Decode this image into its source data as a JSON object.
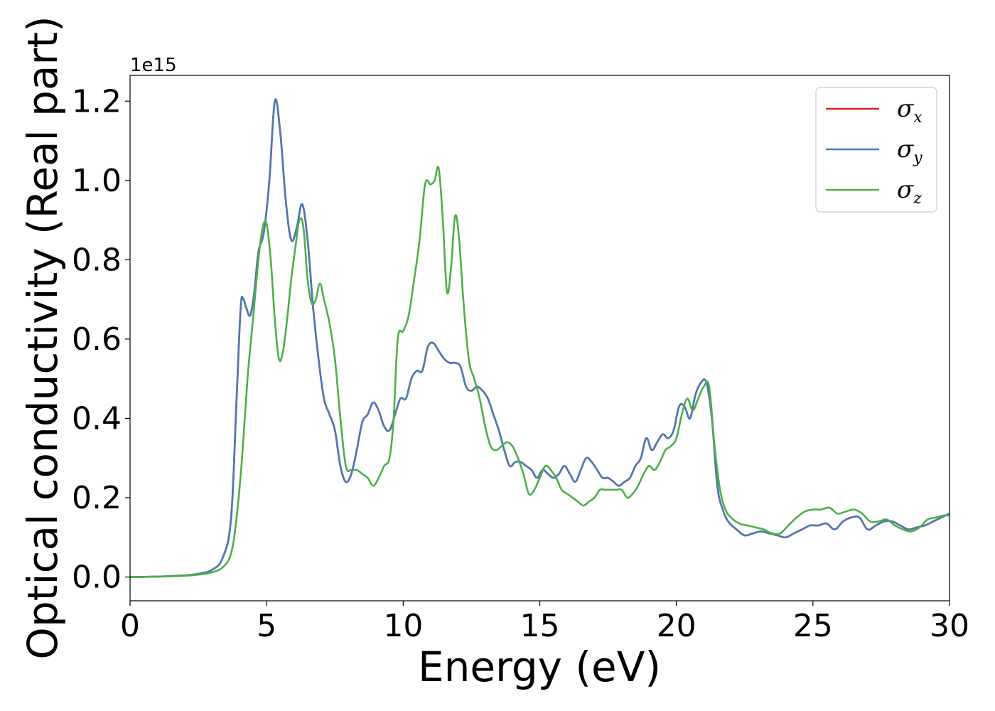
{
  "chart_data": {
    "type": "line",
    "title": "",
    "xlabel": "Energy (eV)",
    "ylabel": "Optical conductivity (Real part)",
    "y_offset_text": "1e15",
    "xlim": [
      0,
      30
    ],
    "ylim": [
      -0.06,
      1.265
    ],
    "xticks": [
      0,
      5,
      10,
      15,
      20,
      25,
      30
    ],
    "yticks": [
      0.0,
      0.2,
      0.4,
      0.6,
      0.8,
      1.0,
      1.2
    ],
    "xtick_labels": [
      "0",
      "5",
      "10",
      "15",
      "20",
      "25",
      "30"
    ],
    "ytick_labels": [
      "0.0",
      "0.2",
      "0.4",
      "0.6",
      "0.8",
      "1.0",
      "1.2"
    ],
    "grid": false,
    "legend_position": "top-right",
    "series": [
      {
        "name": "σx",
        "symbol": "σ",
        "subscript": "x",
        "color": "#e41a1c",
        "x": [
          0,
          1,
          2,
          2.5,
          3,
          3.4,
          3.7,
          3.9,
          4.05,
          4.15,
          4.25,
          4.4,
          4.55,
          4.7,
          4.9,
          5.1,
          5.3,
          5.5,
          5.7,
          5.9,
          6.1,
          6.3,
          6.5,
          6.7,
          6.9,
          7.1,
          7.3,
          7.5,
          7.7,
          7.9,
          8.1,
          8.3,
          8.5,
          8.7,
          8.9,
          9.1,
          9.3,
          9.5,
          9.7,
          9.9,
          10.1,
          10.3,
          10.5,
          10.7,
          10.9,
          11.1,
          11.3,
          11.5,
          11.7,
          11.9,
          12.1,
          12.3,
          12.5,
          12.7,
          12.9,
          13.1,
          13.3,
          13.5,
          13.7,
          13.9,
          14.1,
          14.3,
          14.5,
          14.7,
          14.9,
          15.1,
          15.3,
          15.5,
          15.7,
          15.9,
          16.1,
          16.3,
          16.5,
          16.7,
          16.9,
          17.1,
          17.3,
          17.5,
          17.7,
          17.9,
          18.1,
          18.3,
          18.5,
          18.7,
          18.9,
          19.1,
          19.3,
          19.5,
          19.7,
          19.9,
          20.1,
          20.3,
          20.5,
          20.7,
          20.9,
          21.1,
          21.3,
          21.5,
          21.7,
          21.9,
          22.2,
          22.5,
          22.8,
          23.1,
          23.4,
          23.7,
          24.0,
          24.3,
          24.6,
          24.9,
          25.2,
          25.5,
          25.8,
          26.1,
          26.4,
          26.7,
          27.0,
          27.3,
          27.6,
          27.9,
          28.2,
          28.5,
          28.8,
          29.1,
          29.4,
          29.7,
          30.0
        ],
        "values": [
          0.0,
          0.001,
          0.004,
          0.008,
          0.018,
          0.05,
          0.15,
          0.45,
          0.68,
          0.7,
          0.68,
          0.66,
          0.72,
          0.82,
          0.87,
          1.0,
          1.2,
          1.12,
          0.95,
          0.85,
          0.88,
          0.94,
          0.85,
          0.68,
          0.55,
          0.45,
          0.41,
          0.37,
          0.28,
          0.24,
          0.26,
          0.32,
          0.39,
          0.41,
          0.44,
          0.42,
          0.38,
          0.37,
          0.41,
          0.45,
          0.45,
          0.5,
          0.52,
          0.52,
          0.58,
          0.59,
          0.57,
          0.55,
          0.54,
          0.54,
          0.53,
          0.48,
          0.47,
          0.48,
          0.47,
          0.45,
          0.41,
          0.37,
          0.32,
          0.28,
          0.29,
          0.29,
          0.28,
          0.27,
          0.25,
          0.27,
          0.26,
          0.25,
          0.26,
          0.28,
          0.26,
          0.24,
          0.27,
          0.3,
          0.29,
          0.27,
          0.25,
          0.25,
          0.24,
          0.23,
          0.24,
          0.25,
          0.28,
          0.3,
          0.35,
          0.32,
          0.34,
          0.36,
          0.35,
          0.37,
          0.43,
          0.43,
          0.4,
          0.46,
          0.49,
          0.49,
          0.4,
          0.23,
          0.17,
          0.14,
          0.12,
          0.105,
          0.11,
          0.115,
          0.11,
          0.105,
          0.1,
          0.11,
          0.12,
          0.13,
          0.13,
          0.135,
          0.12,
          0.14,
          0.15,
          0.15,
          0.12,
          0.13,
          0.14,
          0.14,
          0.13,
          0.12,
          0.125,
          0.13,
          0.14,
          0.15,
          0.16
        ],
        "note": ""
      },
      {
        "name": "σy",
        "symbol": "σ",
        "subscript": "y",
        "color": "#4a7ab5",
        "x": [
          0,
          1,
          2,
          2.5,
          3,
          3.4,
          3.7,
          3.9,
          4.05,
          4.15,
          4.25,
          4.4,
          4.55,
          4.7,
          4.9,
          5.1,
          5.3,
          5.5,
          5.7,
          5.9,
          6.1,
          6.3,
          6.5,
          6.7,
          6.9,
          7.1,
          7.3,
          7.5,
          7.7,
          7.9,
          8.1,
          8.3,
          8.5,
          8.7,
          8.9,
          9.1,
          9.3,
          9.5,
          9.7,
          9.9,
          10.1,
          10.3,
          10.5,
          10.7,
          10.9,
          11.1,
          11.3,
          11.5,
          11.7,
          11.9,
          12.1,
          12.3,
          12.5,
          12.7,
          12.9,
          13.1,
          13.3,
          13.5,
          13.7,
          13.9,
          14.1,
          14.3,
          14.5,
          14.7,
          14.9,
          15.1,
          15.3,
          15.5,
          15.7,
          15.9,
          16.1,
          16.3,
          16.5,
          16.7,
          16.9,
          17.1,
          17.3,
          17.5,
          17.7,
          17.9,
          18.1,
          18.3,
          18.5,
          18.7,
          18.9,
          19.1,
          19.3,
          19.5,
          19.7,
          19.9,
          20.1,
          20.3,
          20.5,
          20.7,
          20.9,
          21.1,
          21.3,
          21.5,
          21.7,
          21.9,
          22.2,
          22.5,
          22.8,
          23.1,
          23.4,
          23.7,
          24.0,
          24.3,
          24.6,
          24.9,
          25.2,
          25.5,
          25.8,
          26.1,
          26.4,
          26.7,
          27.0,
          27.3,
          27.6,
          27.9,
          28.2,
          28.5,
          28.8,
          29.1,
          29.4,
          29.7,
          30.0
        ],
        "values": [
          0.0,
          0.001,
          0.004,
          0.008,
          0.018,
          0.05,
          0.15,
          0.45,
          0.68,
          0.7,
          0.68,
          0.66,
          0.72,
          0.82,
          0.87,
          1.0,
          1.2,
          1.12,
          0.95,
          0.85,
          0.88,
          0.94,
          0.85,
          0.68,
          0.55,
          0.45,
          0.41,
          0.37,
          0.28,
          0.24,
          0.26,
          0.32,
          0.39,
          0.41,
          0.44,
          0.42,
          0.38,
          0.37,
          0.41,
          0.45,
          0.45,
          0.5,
          0.52,
          0.52,
          0.58,
          0.59,
          0.57,
          0.55,
          0.54,
          0.54,
          0.53,
          0.48,
          0.47,
          0.48,
          0.47,
          0.45,
          0.41,
          0.37,
          0.32,
          0.28,
          0.29,
          0.29,
          0.28,
          0.27,
          0.25,
          0.27,
          0.26,
          0.25,
          0.26,
          0.28,
          0.26,
          0.24,
          0.27,
          0.3,
          0.29,
          0.27,
          0.25,
          0.25,
          0.24,
          0.23,
          0.24,
          0.25,
          0.28,
          0.3,
          0.35,
          0.32,
          0.34,
          0.36,
          0.35,
          0.37,
          0.43,
          0.43,
          0.4,
          0.46,
          0.49,
          0.49,
          0.4,
          0.23,
          0.17,
          0.14,
          0.12,
          0.105,
          0.11,
          0.115,
          0.11,
          0.105,
          0.1,
          0.11,
          0.12,
          0.13,
          0.13,
          0.135,
          0.12,
          0.14,
          0.15,
          0.15,
          0.12,
          0.13,
          0.14,
          0.14,
          0.13,
          0.12,
          0.125,
          0.13,
          0.14,
          0.15,
          0.16
        ]
      },
      {
        "name": "σz",
        "symbol": "σ",
        "subscript": "z",
        "color": "#4daf4a",
        "x": [
          0,
          1,
          2,
          2.5,
          3,
          3.4,
          3.7,
          3.9,
          4.1,
          4.3,
          4.5,
          4.7,
          4.85,
          5.0,
          5.15,
          5.3,
          5.45,
          5.6,
          5.75,
          5.9,
          6.05,
          6.2,
          6.35,
          6.5,
          6.65,
          6.8,
          6.95,
          7.1,
          7.3,
          7.5,
          7.7,
          7.9,
          8.1,
          8.3,
          8.5,
          8.7,
          8.9,
          9.1,
          9.3,
          9.5,
          9.65,
          9.8,
          10.0,
          10.2,
          10.4,
          10.6,
          10.8,
          11.0,
          11.15,
          11.3,
          11.45,
          11.6,
          11.75,
          11.9,
          12.05,
          12.2,
          12.4,
          12.6,
          12.8,
          13.0,
          13.2,
          13.4,
          13.6,
          13.8,
          14.0,
          14.2,
          14.4,
          14.6,
          14.8,
          15.0,
          15.2,
          15.4,
          15.6,
          15.8,
          16.0,
          16.2,
          16.4,
          16.6,
          16.8,
          17.0,
          17.2,
          17.4,
          17.6,
          17.8,
          18.0,
          18.2,
          18.4,
          18.6,
          18.8,
          19.0,
          19.2,
          19.4,
          19.6,
          19.8,
          20.0,
          20.2,
          20.4,
          20.6,
          20.8,
          21.0,
          21.2,
          21.4,
          21.6,
          21.8,
          22.0,
          22.3,
          22.6,
          22.9,
          23.2,
          23.5,
          23.8,
          24.1,
          24.4,
          24.7,
          25.0,
          25.3,
          25.6,
          25.9,
          26.2,
          26.5,
          26.8,
          27.1,
          27.4,
          27.7,
          28.0,
          28.3,
          28.6,
          28.9,
          29.2,
          29.5,
          29.8,
          30.0
        ],
        "values": [
          0.0,
          0.001,
          0.003,
          0.006,
          0.012,
          0.025,
          0.06,
          0.15,
          0.3,
          0.5,
          0.65,
          0.8,
          0.88,
          0.89,
          0.8,
          0.65,
          0.55,
          0.57,
          0.65,
          0.75,
          0.83,
          0.9,
          0.88,
          0.75,
          0.69,
          0.7,
          0.74,
          0.7,
          0.64,
          0.55,
          0.4,
          0.28,
          0.27,
          0.27,
          0.26,
          0.25,
          0.23,
          0.25,
          0.28,
          0.3,
          0.4,
          0.6,
          0.62,
          0.66,
          0.75,
          0.85,
          0.99,
          0.99,
          1.0,
          1.03,
          0.9,
          0.72,
          0.78,
          0.91,
          0.85,
          0.7,
          0.55,
          0.5,
          0.45,
          0.38,
          0.33,
          0.32,
          0.33,
          0.34,
          0.33,
          0.3,
          0.26,
          0.21,
          0.22,
          0.25,
          0.28,
          0.27,
          0.25,
          0.22,
          0.21,
          0.2,
          0.19,
          0.18,
          0.19,
          0.2,
          0.22,
          0.22,
          0.22,
          0.22,
          0.22,
          0.2,
          0.21,
          0.23,
          0.26,
          0.28,
          0.27,
          0.29,
          0.32,
          0.33,
          0.35,
          0.41,
          0.45,
          0.42,
          0.45,
          0.48,
          0.48,
          0.33,
          0.22,
          0.17,
          0.15,
          0.135,
          0.13,
          0.125,
          0.12,
          0.11,
          0.11,
          0.13,
          0.15,
          0.165,
          0.17,
          0.17,
          0.175,
          0.16,
          0.165,
          0.17,
          0.16,
          0.14,
          0.14,
          0.145,
          0.13,
          0.12,
          0.115,
          0.125,
          0.145,
          0.15,
          0.155,
          0.155
        ]
      }
    ]
  }
}
